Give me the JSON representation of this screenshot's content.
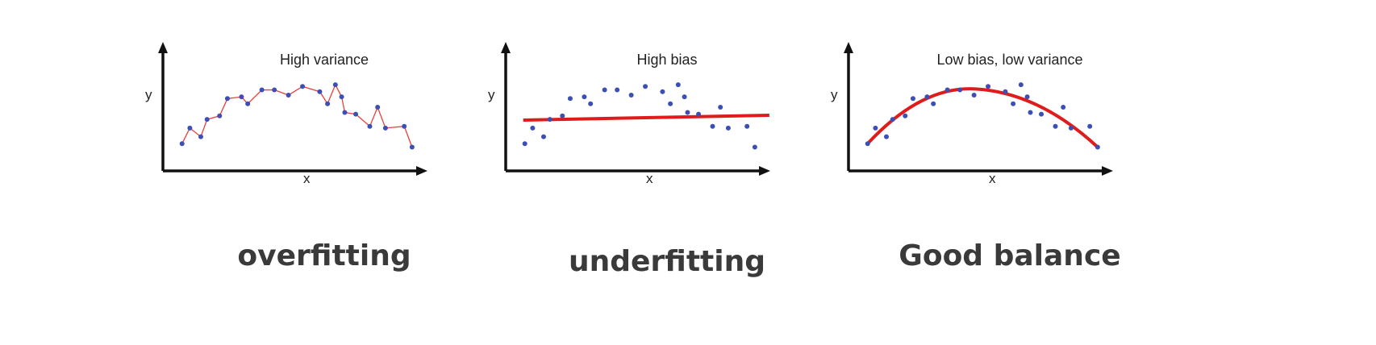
{
  "panels": [
    {
      "title": "High variance",
      "caption": "overfitting",
      "xlabel": "x",
      "ylabel": "y",
      "fit": "interpolate"
    },
    {
      "title": "High bias",
      "caption": "underfitting",
      "xlabel": "x",
      "ylabel": "y",
      "fit": "flat-line"
    },
    {
      "title": "Low bias, low variance",
      "caption": "Good balance",
      "xlabel": "x",
      "ylabel": "y",
      "fit": "smooth-curve"
    }
  ],
  "colors": {
    "point": "#3b4fb5",
    "thin_fit": "#e8403a",
    "thick_fit": "#e01b1b",
    "axis": "#111111"
  },
  "points": [
    [
      0.5,
      1.2
    ],
    [
      1.0,
      2.1
    ],
    [
      1.7,
      1.6
    ],
    [
      2.1,
      2.6
    ],
    [
      2.9,
      2.8
    ],
    [
      3.4,
      3.8
    ],
    [
      4.3,
      3.9
    ],
    [
      4.7,
      3.5
    ],
    [
      5.6,
      4.3
    ],
    [
      6.4,
      4.3
    ],
    [
      7.3,
      4.0
    ],
    [
      8.2,
      4.5
    ],
    [
      9.3,
      4.2
    ],
    [
      9.8,
      3.5
    ],
    [
      10.3,
      4.6
    ],
    [
      10.7,
      3.9
    ],
    [
      10.9,
      3.0
    ],
    [
      11.6,
      2.9
    ],
    [
      12.5,
      2.2
    ],
    [
      13.0,
      3.3
    ],
    [
      13.5,
      2.1
    ],
    [
      14.7,
      2.2
    ],
    [
      15.2,
      1.0
    ]
  ],
  "flat_line_y": 2.7,
  "curve": {
    "start": [
      0.5,
      1.2
    ],
    "peak": [
      7.5,
      4.35
    ],
    "end": [
      15.2,
      1.0
    ]
  }
}
